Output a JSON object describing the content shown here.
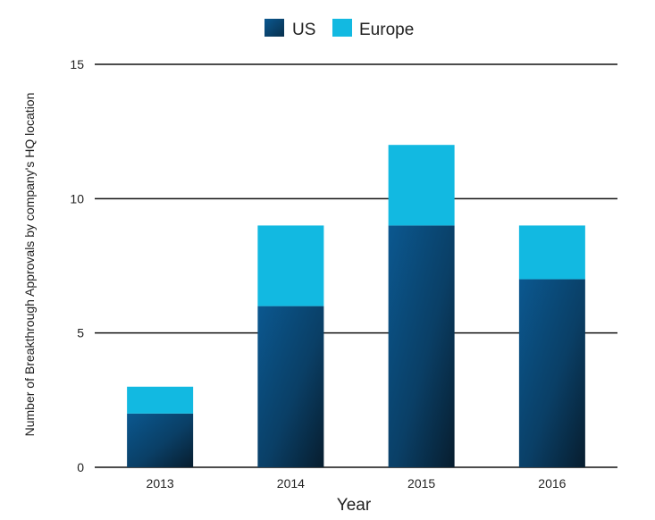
{
  "chart_data": {
    "type": "bar",
    "stacked": true,
    "categories": [
      "2013",
      "2014",
      "2015",
      "2016"
    ],
    "series": [
      {
        "name": "US",
        "values": [
          2,
          6,
          9,
          7
        ],
        "color": "#0a4f7e"
      },
      {
        "name": "Europe",
        "values": [
          1,
          3,
          3,
          2
        ],
        "color": "#12b9e1"
      }
    ],
    "xlabel": "Year",
    "ylabel": "Number of Breakthrough Approvals by company's HQ location",
    "ylim": [
      0,
      15
    ],
    "yticks": [
      "0",
      "5",
      "10",
      "15"
    ],
    "grid": true,
    "legend_position": "top-center"
  }
}
